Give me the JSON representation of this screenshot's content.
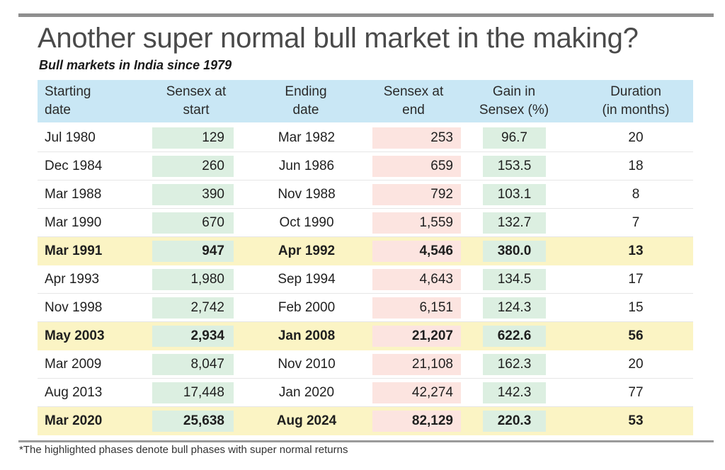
{
  "title": "Another super normal bull market in the making?",
  "subtitle": "Bull markets in India since 1979",
  "footnote": "*The highlighted phases denote bull phases with super normal returns",
  "colors": {
    "header_bg": "#c9e7f5",
    "highlight_row": "#fbf4c4",
    "start_value_box": "#dcefe1",
    "end_value_box": "#fce4e0",
    "gain_box": "#dcefe1"
  },
  "chart_data": {
    "type": "table",
    "title": "Bull markets in India since 1979",
    "columns": [
      "Starting\ndate",
      "Sensex at\nstart",
      "Ending\ndate",
      "Sensex at\nend",
      "Gain in\nSensex (%)",
      "Duration\n(in months)"
    ],
    "rows": [
      {
        "start_date": "Jul 1980",
        "sensex_start": "129",
        "end_date": "Mar 1982",
        "sensex_end": "253",
        "gain": "96.7",
        "duration": "20",
        "highlighted": false
      },
      {
        "start_date": "Dec 1984",
        "sensex_start": "260",
        "end_date": "Jun 1986",
        "sensex_end": "659",
        "gain": "153.5",
        "duration": "18",
        "highlighted": false
      },
      {
        "start_date": "Mar 1988",
        "sensex_start": "390",
        "end_date": "Nov 1988",
        "sensex_end": "792",
        "gain": "103.1",
        "duration": "8",
        "highlighted": false
      },
      {
        "start_date": "Mar 1990",
        "sensex_start": "670",
        "end_date": "Oct 1990",
        "sensex_end": "1,559",
        "gain": "132.7",
        "duration": "7",
        "highlighted": false
      },
      {
        "start_date": "Mar 1991",
        "sensex_start": "947",
        "end_date": "Apr 1992",
        "sensex_end": "4,546",
        "gain": "380.0",
        "duration": "13",
        "highlighted": true
      },
      {
        "start_date": "Apr 1993",
        "sensex_start": "1,980",
        "end_date": "Sep 1994",
        "sensex_end": "4,643",
        "gain": "134.5",
        "duration": "17",
        "highlighted": false
      },
      {
        "start_date": "Nov 1998",
        "sensex_start": "2,742",
        "end_date": "Feb 2000",
        "sensex_end": "6,151",
        "gain": "124.3",
        "duration": "15",
        "highlighted": false
      },
      {
        "start_date": "May 2003",
        "sensex_start": "2,934",
        "end_date": "Jan 2008",
        "sensex_end": "21,207",
        "gain": "622.6",
        "duration": "56",
        "highlighted": true
      },
      {
        "start_date": "Mar 2009",
        "sensex_start": "8,047",
        "end_date": "Nov 2010",
        "sensex_end": "21,108",
        "gain": "162.3",
        "duration": "20",
        "highlighted": false
      },
      {
        "start_date": "Aug 2013",
        "sensex_start": "17,448",
        "end_date": "Jan 2020",
        "sensex_end": "42,274",
        "gain": "142.3",
        "duration": "77",
        "highlighted": false
      },
      {
        "start_date": "Mar 2020",
        "sensex_start": "25,638",
        "end_date": "Aug 2024",
        "sensex_end": "82,129",
        "gain": "220.3",
        "duration": "53",
        "highlighted": true
      }
    ]
  }
}
